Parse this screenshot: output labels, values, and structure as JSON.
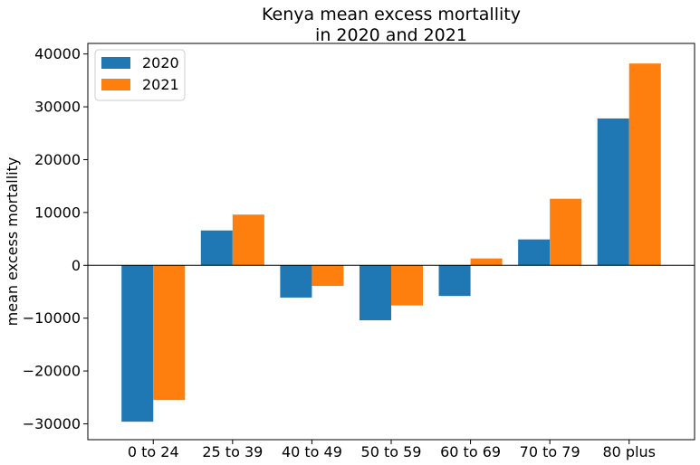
{
  "chart_data": {
    "type": "bar",
    "title_line1": "Kenya mean excess mortallity",
    "title_line2": "in 2020 and 2021",
    "xlabel": "",
    "ylabel": "mean excess mortallity",
    "categories": [
      "0 to 24",
      "25 to 39",
      "40 to 49",
      "50 to 59",
      "60 to 69",
      "70 to 79",
      "80 plus"
    ],
    "series": [
      {
        "name": "2020",
        "color": "#1f77b4",
        "values": [
          -29600,
          6600,
          -6100,
          -10400,
          -5800,
          4900,
          27800
        ]
      },
      {
        "name": "2021",
        "color": "#ff7f0e",
        "values": [
          -25500,
          9600,
          -3900,
          -7600,
          1300,
          12600,
          38200
        ]
      }
    ],
    "ylim": [
      -33000,
      42000
    ],
    "yticks": [
      -30000,
      -20000,
      -10000,
      0,
      10000,
      20000,
      30000,
      40000
    ],
    "ytick_labels": [
      "−30000",
      "−20000",
      "−10000",
      "0",
      "10000",
      "20000",
      "30000",
      "40000"
    ],
    "legend_position": "top-left",
    "grid": false
  }
}
